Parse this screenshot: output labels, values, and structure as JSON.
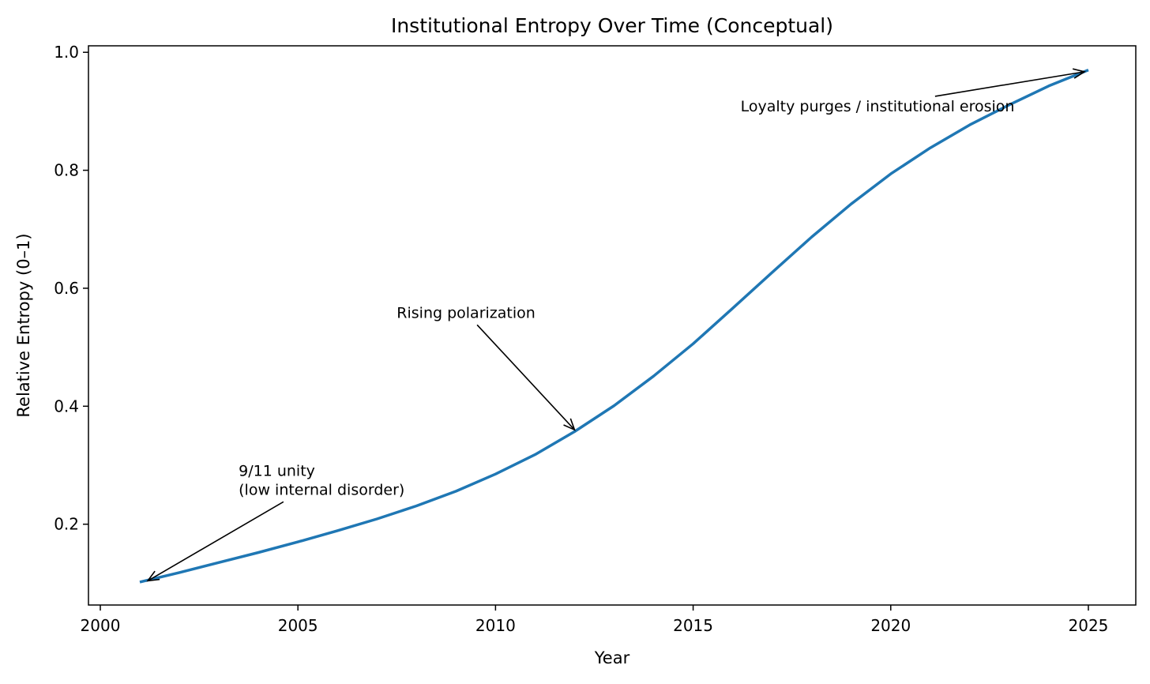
{
  "chart_data": {
    "type": "line",
    "title": "Institutional Entropy Over Time (Conceptual)",
    "xlabel": "Year",
    "ylabel": "Relative Entropy (0–1)",
    "xlim": [
      1999.7,
      2026.2
    ],
    "ylim": [
      0.063,
      1.011
    ],
    "xticks": [
      2000,
      2005,
      2010,
      2015,
      2020,
      2025
    ],
    "yticks": [
      0.2,
      0.4,
      0.6,
      0.8,
      1.0
    ],
    "xtick_labels": [
      "2000",
      "2005",
      "2010",
      "2015",
      "2020",
      "2025"
    ],
    "ytick_labels": [
      "0.2",
      "0.4",
      "0.6",
      "0.8",
      "1.0"
    ],
    "grid": false,
    "legend": "none",
    "color": "#1f77b4",
    "series": [
      {
        "x": [
          2001,
          2002,
          2003,
          2004,
          2005,
          2006,
          2007,
          2008,
          2009,
          2010,
          2011,
          2012,
          2013,
          2014,
          2015,
          2016,
          2017,
          2018,
          2019,
          2020,
          2021,
          2022,
          2023,
          2024,
          2025
        ],
        "values": [
          0.102,
          0.118,
          0.135,
          0.152,
          0.17,
          0.189,
          0.209,
          0.231,
          0.256,
          0.285,
          0.318,
          0.357,
          0.401,
          0.451,
          0.506,
          0.566,
          0.627,
          0.687,
          0.743,
          0.794,
          0.838,
          0.877,
          0.911,
          0.943,
          0.97
        ]
      }
    ],
    "annotations": [
      {
        "lines": [
          "9/11 unity",
          "(low internal disorder)"
        ],
        "text_x": 2003.5,
        "text_y": 0.25,
        "point_x": 2001.2,
        "point_y": 0.104
      },
      {
        "lines": [
          "Rising polarization"
        ],
        "text_x": 2007.5,
        "text_y": 0.55,
        "point_x": 2012,
        "point_y": 0.36
      },
      {
        "lines": [
          "Loyalty purges / institutional erosion"
        ],
        "text_x": 2016.2,
        "text_y": 0.9,
        "point_x": 2024.9,
        "point_y": 0.967
      }
    ]
  }
}
